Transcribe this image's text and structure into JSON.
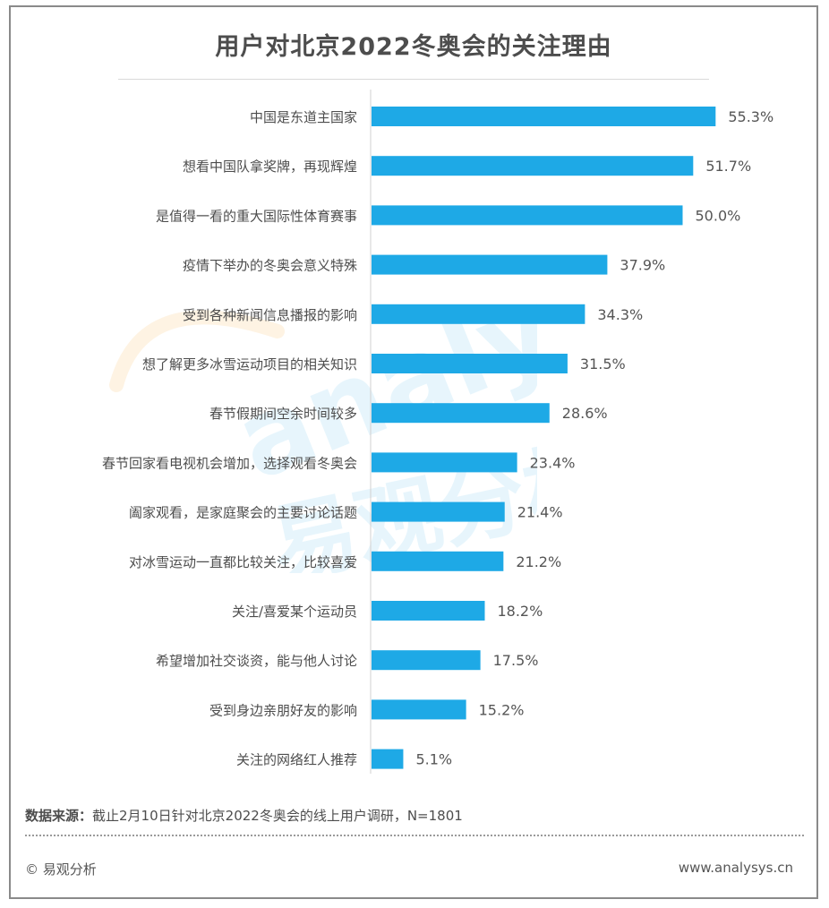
{
  "title": "用户对北京2022冬奥会的关注理由",
  "chart_data": {
    "type": "bar",
    "orientation": "horizontal",
    "title": "用户对北京2022冬奥会的关注理由",
    "categories": [
      "中国是东道主国家",
      "想看中国队拿奖牌，再现辉煌",
      "是值得一看的重大国际性体育赛事",
      "疫情下举办的冬奥会意义特殊",
      "受到各种新闻信息播报的影响",
      "想了解更多冰雪运动项目的相关知识",
      "春节假期间空余时间较多",
      "春节回家看电视机会增加，选择观看冬奥会",
      "阖家观看，是家庭聚会的主要讨论话题",
      "对冰雪运动一直都比较关注，比较喜爱",
      "关注/喜爱某个运动员",
      "希望增加社交谈资，能与他人讨论",
      "受到身边亲朋好友的影响",
      "关注的网络红人推荐"
    ],
    "values": [
      55.3,
      51.7,
      50.0,
      37.9,
      34.3,
      31.5,
      28.6,
      23.4,
      21.4,
      21.2,
      18.2,
      17.5,
      15.2,
      5.1
    ],
    "labels": [
      "55.3%",
      "51.7%",
      "50.0%",
      "37.9%",
      "34.3%",
      "31.5%",
      "28.6%",
      "23.4%",
      "21.4%",
      "21.2%",
      "18.2%",
      "17.5%",
      "15.2%",
      "5.1%"
    ],
    "xlim": [
      0,
      100
    ],
    "unit": "%",
    "bar_color": "#1ea9e6",
    "label_color": "#555555",
    "grid": false
  },
  "watermark": {
    "latin": "analysys",
    "chinese": "易观分析",
    "blue": "#1ea9e6",
    "orange": "#f5a623"
  },
  "source": {
    "label": "数据来源：",
    "text": "截止2月10日针对北京2022冬奥会的线上用户调研，N=1801"
  },
  "footer": {
    "copyright": "© 易观分析",
    "site": "www.analysys.cn"
  }
}
